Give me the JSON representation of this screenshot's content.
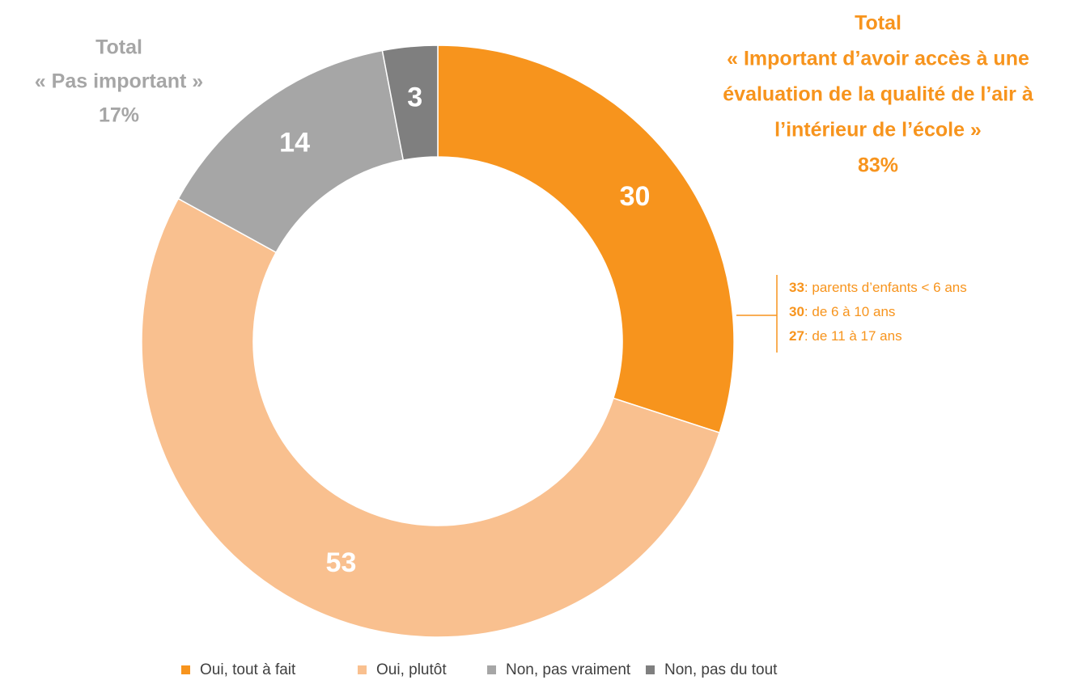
{
  "chart_data": {
    "type": "donut",
    "categories": [
      "Oui, tout à fait",
      "Oui, plutôt",
      "Non, pas vraiment",
      "Non, pas du tout"
    ],
    "values": [
      30,
      53,
      14,
      3
    ],
    "colors": [
      "#f7941d",
      "#f9c08f",
      "#a6a6a6",
      "#7f7f7f"
    ],
    "annotations": [
      {
        "lines": [
          "Total",
          "« Important d’avoir accès à une",
          "évaluation de la qualité de l’air à",
          "l’intérieur de l’école »",
          "83%"
        ],
        "color": "#f7941d"
      },
      {
        "lines": [
          "Total",
          "« Pas important »",
          "17%"
        ],
        "color": "#a6a6a6"
      }
    ],
    "breakdown": [
      {
        "value": 33,
        "text": ": parents d’enfants < 6 ans"
      },
      {
        "value": 30,
        "text": ": de 6 à 10 ans"
      },
      {
        "value": 27,
        "text": ": de 11 à 17 ans"
      }
    ],
    "legend": "bottom"
  }
}
